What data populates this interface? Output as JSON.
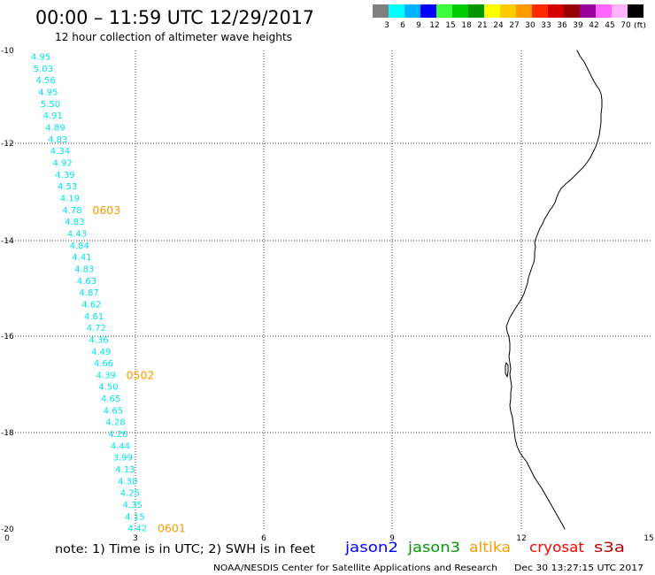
{
  "header": {
    "title": "00:00 – 11:59 UTC 12/29/2017",
    "subtitle": "12 hour collection of altimeter wave heights"
  },
  "color_scale": {
    "unit": "(ft)",
    "labels": [
      "3",
      "6",
      "9",
      "12",
      "15",
      "18",
      "21",
      "24",
      "27",
      "30",
      "33",
      "36",
      "39",
      "42",
      "45",
      "70"
    ],
    "colors": [
      "#7f7f7f",
      "#00ffff",
      "#00b2ff",
      "#0000ff",
      "#3cff3c",
      "#00cc00",
      "#009600",
      "#ffff00",
      "#ffcc00",
      "#ff9900",
      "#ff2a00",
      "#d40000",
      "#990000",
      "#99009c",
      "#ff66ff",
      "#ffb3ff",
      "#000000"
    ]
  },
  "map": {
    "y_ticks": [
      "-10",
      "-12",
      "-14",
      "-16",
      "-18",
      "-20"
    ],
    "x_ticks": [
      "0",
      "3",
      "6",
      "9",
      "12",
      "15"
    ],
    "observation_color": "#00e5f0",
    "time_label_color": "#ff9900",
    "observations": [
      {
        "swh": "4.95"
      },
      {
        "swh": "5.03"
      },
      {
        "swh": "4.56"
      },
      {
        "swh": "4.95"
      },
      {
        "swh": "5.50"
      },
      {
        "swh": "4.91"
      },
      {
        "swh": "4.89"
      },
      {
        "swh": "4.83"
      },
      {
        "swh": "4.34"
      },
      {
        "swh": "4.92"
      },
      {
        "swh": "4.39"
      },
      {
        "swh": "4.53"
      },
      {
        "swh": "4.19"
      },
      {
        "swh": "4.78",
        "time": "0603"
      },
      {
        "swh": "4.83"
      },
      {
        "swh": "4.43"
      },
      {
        "swh": "4.84"
      },
      {
        "swh": "4.41"
      },
      {
        "swh": "4.83"
      },
      {
        "swh": "4.63"
      },
      {
        "swh": "4.87"
      },
      {
        "swh": "4.62"
      },
      {
        "swh": "4.61"
      },
      {
        "swh": "4.72"
      },
      {
        "swh": "4.36"
      },
      {
        "swh": "4.49"
      },
      {
        "swh": "4.66"
      },
      {
        "swh": "4.39",
        "time": "0502"
      },
      {
        "swh": "4.50"
      },
      {
        "swh": "4.65"
      },
      {
        "swh": "4.65"
      },
      {
        "swh": "4.28"
      },
      {
        "swh": "4.26"
      },
      {
        "swh": "4.44"
      },
      {
        "swh": "3.99"
      },
      {
        "swh": "4.13"
      },
      {
        "swh": "4.30"
      },
      {
        "swh": "4.25"
      },
      {
        "swh": "4.35"
      },
      {
        "swh": "4.15"
      },
      {
        "swh": "4.42",
        "time": "0601"
      }
    ]
  },
  "footer": {
    "note": "note: 1) Time is in UTC; 2) SWH is in feet",
    "satellites": [
      {
        "name": "jason2",
        "color": "#0000ff"
      },
      {
        "name": "jason3",
        "color": "#009900"
      },
      {
        "name": "altika",
        "color": "#ff9900"
      },
      {
        "name": "cryosat",
        "color": "#ff0000"
      },
      {
        "name": "s3a",
        "color": "#b40000"
      }
    ],
    "credit": "NOAA/NESDIS Center for Satellite Applications and Research",
    "timestamp": "Dec 30 13:27:15 UTC 2017"
  }
}
